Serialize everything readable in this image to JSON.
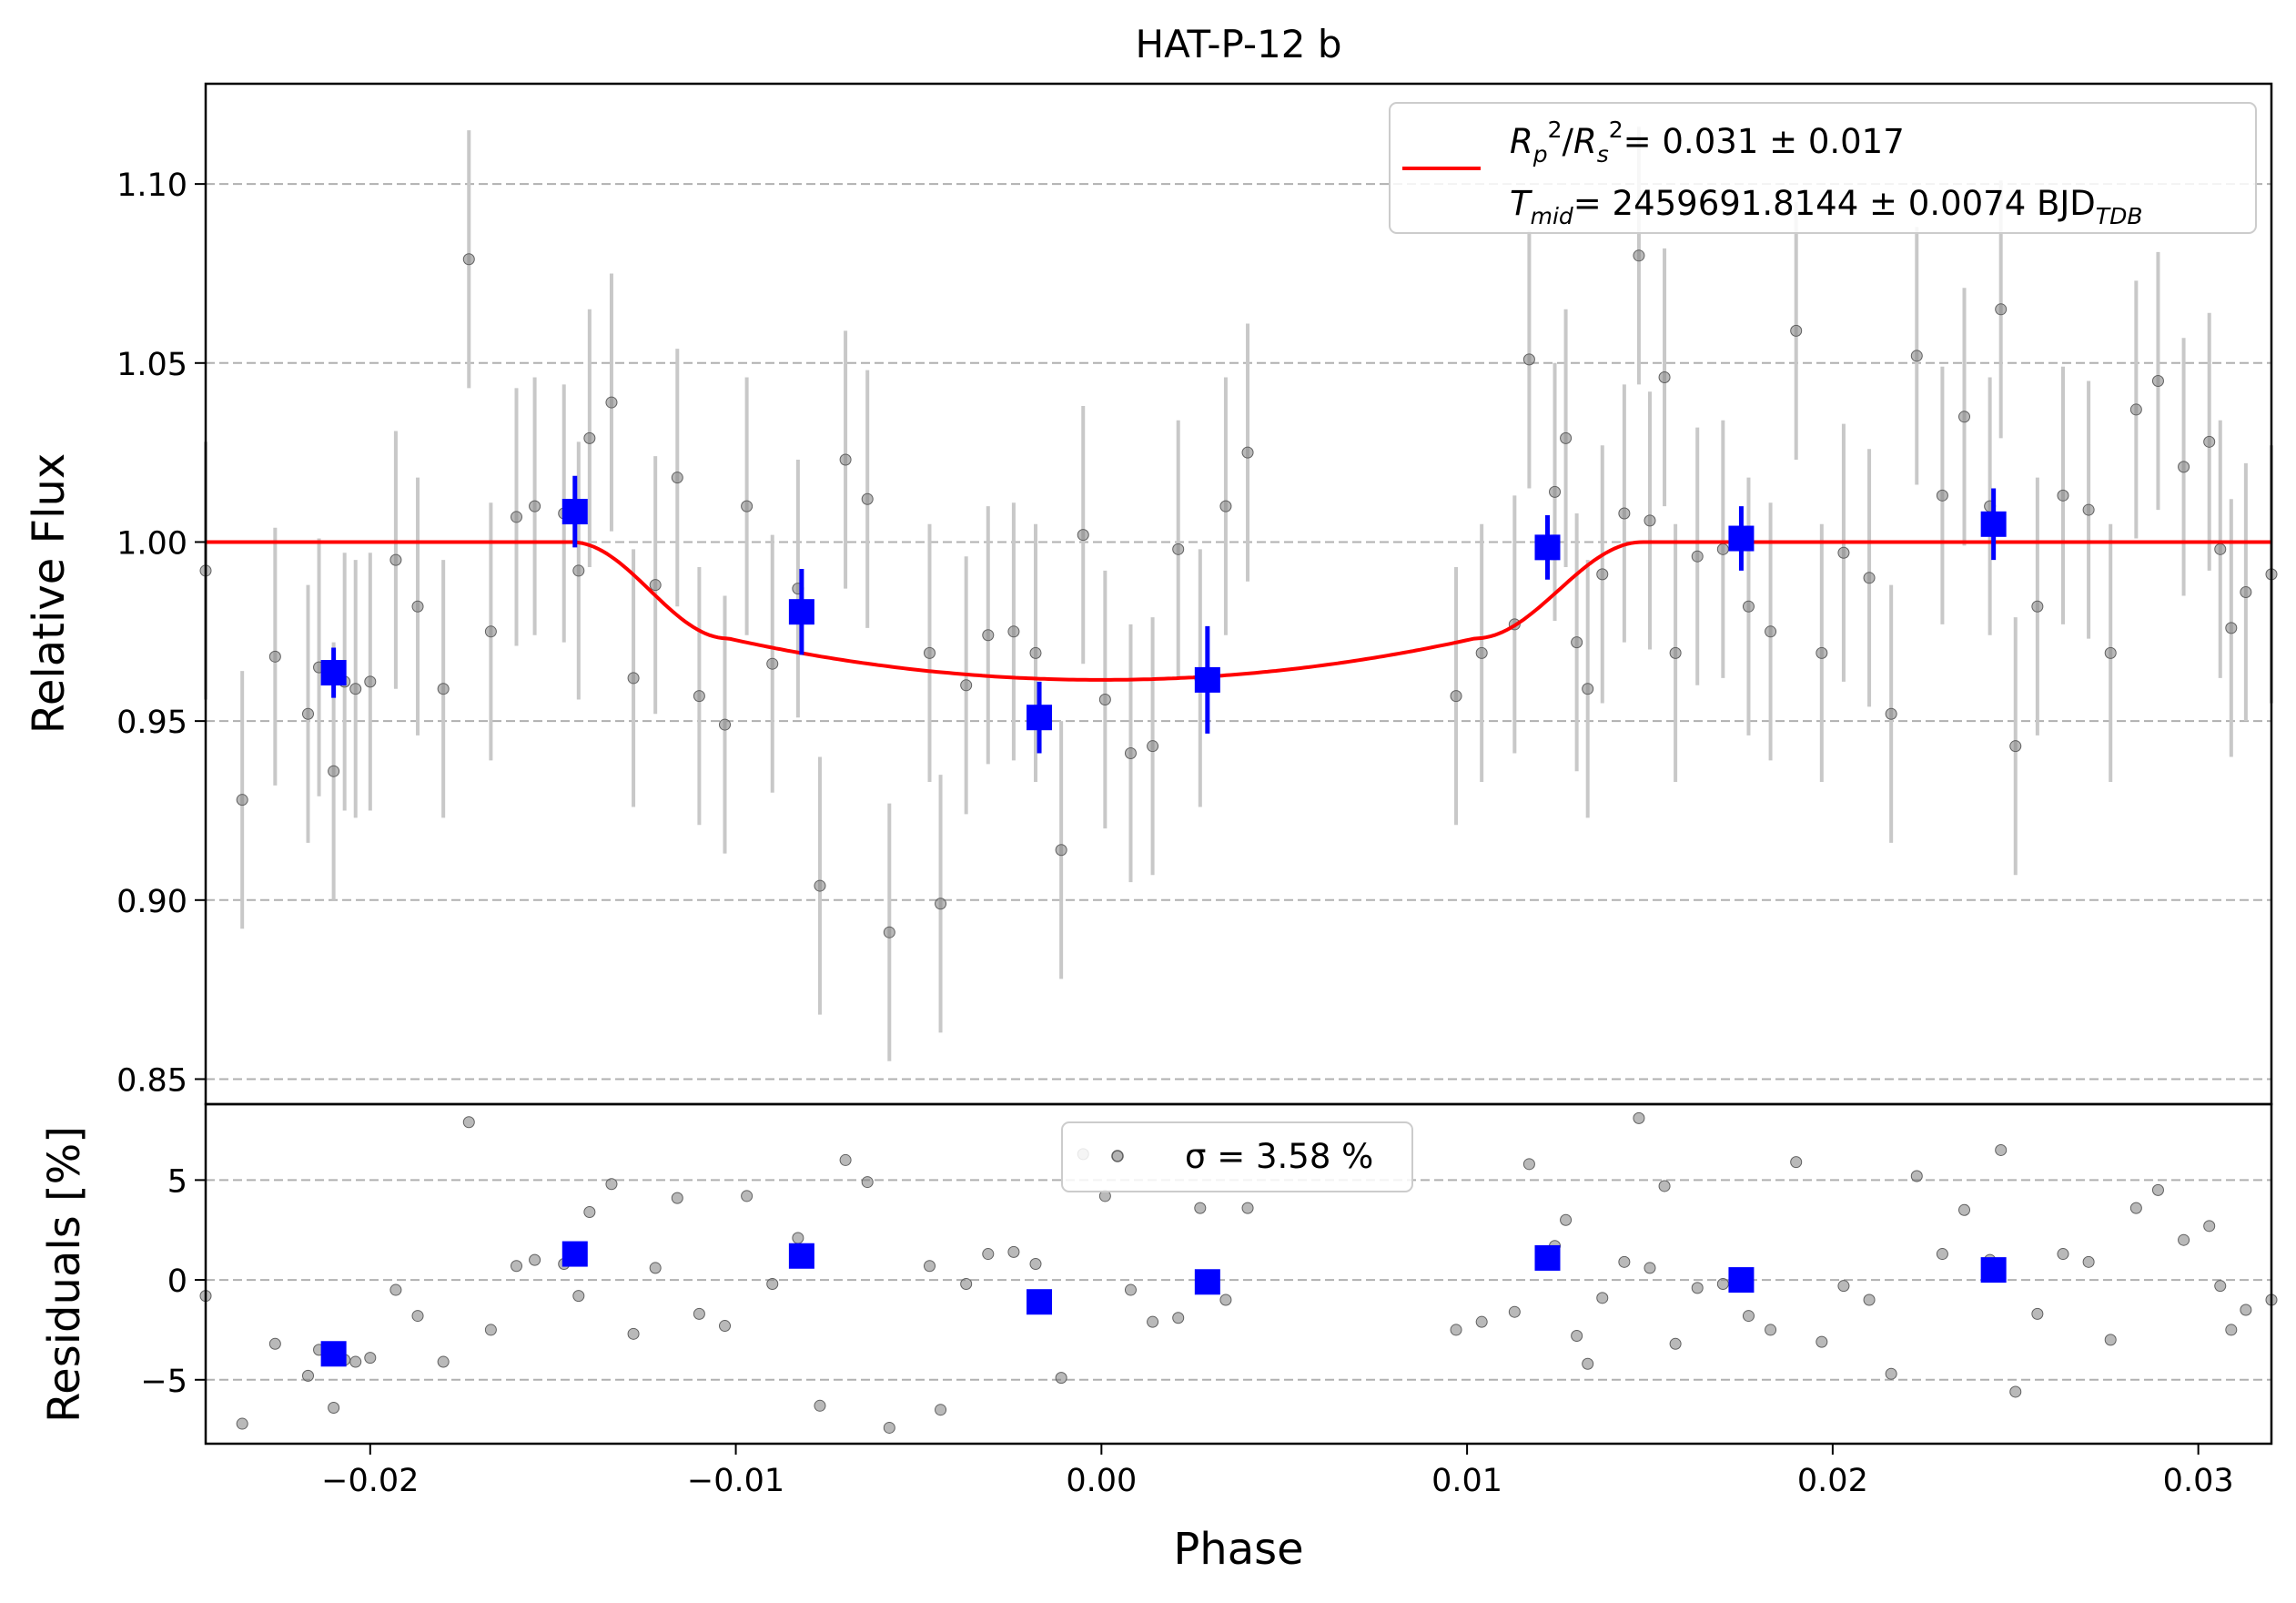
{
  "chart_data": [
    {
      "type": "scatter",
      "panel": "transit",
      "title": "HAT-P-12 b",
      "xlabel": "",
      "ylabel": "Relative Flux",
      "xlim": [
        -0.0245,
        0.032
      ],
      "ylim": [
        0.843,
        1.128
      ],
      "grid": "horizontal dashed",
      "yticks": [
        0.85,
        0.9,
        0.95,
        1.0,
        1.05,
        1.1
      ],
      "ytick_labels": [
        "0.85",
        "0.90",
        "0.95",
        "1.00",
        "1.05",
        "1.10"
      ],
      "legend": {
        "placement": "top-right",
        "entries": [
          {
            "label_html": "R<sub>p</sub><sup>2</sup>/R<sub>s</sub><sup>2</sup> = 0.031 ± 0.017",
            "line1_text": "= 0.031 ± 0.017"
          },
          {
            "label_html": "T<sub>mid</sub> = 2459691.8144 ± 0.0074 BJD<sub>TDB</sub>",
            "line2_text": "= 2459691.8144 ± 0.0074 BJD"
          }
        ]
      },
      "model": {
        "color": "#ff0000",
        "baseline": 1.0,
        "depth": 0.0385,
        "t1": -0.0145,
        "t2": -0.0102,
        "t3": 0.0102,
        "t4": 0.0148
      },
      "raw_points": {
        "color": "#808080",
        "x": [
          -0.0245,
          -0.0235,
          -0.0226,
          -0.0217,
          -0.0214,
          -0.021,
          -0.0207,
          -0.0204,
          -0.02,
          -0.0193,
          -0.0187,
          -0.018,
          -0.0173,
          -0.0167,
          -0.016,
          -0.0155,
          -0.0147,
          -0.0143,
          -0.014,
          -0.0134,
          -0.0128,
          -0.0122,
          -0.0116,
          -0.011,
          -0.0103,
          -0.0097,
          -0.009,
          -0.0083,
          -0.0077,
          -0.007,
          -0.0064,
          -0.0058,
          -0.0047,
          -0.0044,
          -0.0037,
          -0.0031,
          -0.0024,
          -0.0018,
          -0.0011,
          -0.0005,
          0.0001,
          0.0008,
          0.0014,
          0.0021,
          0.0027,
          0.0034,
          0.004,
          0.0097,
          0.0104,
          0.0113,
          0.0117,
          0.0124,
          0.0127,
          0.013,
          0.0133,
          0.0137,
          0.0143,
          0.0147,
          0.015,
          0.0154,
          0.0157,
          0.0163,
          0.017,
          0.0177,
          0.0183,
          0.019,
          0.0197,
          0.0203,
          0.021,
          0.0216,
          0.0223,
          0.023,
          0.0236,
          0.0243,
          0.0246,
          0.025,
          0.0256,
          0.0263,
          0.027,
          0.0276,
          0.0283,
          0.0289,
          0.0296,
          0.0303,
          0.0306,
          0.0309,
          0.0313,
          0.032
        ],
        "y": [
          0.992,
          0.928,
          0.968,
          0.952,
          0.965,
          0.936,
          0.961,
          0.959,
          0.961,
          0.995,
          0.982,
          0.959,
          1.079,
          0.975,
          1.007,
          1.01,
          1.008,
          0.992,
          1.029,
          1.039,
          0.962,
          0.988,
          1.018,
          0.957,
          0.949,
          1.01,
          0.966,
          0.987,
          0.904,
          1.023,
          1.012,
          0.891,
          0.969,
          0.899,
          0.96,
          0.974,
          0.975,
          0.969,
          0.914,
          1.002,
          0.956,
          0.941,
          0.943,
          0.998,
          0.962,
          1.01,
          1.025,
          0.957,
          0.969,
          0.977,
          1.051,
          1.014,
          1.029,
          0.972,
          0.959,
          0.991,
          1.008,
          1.08,
          1.006,
          1.046,
          0.969,
          0.996,
          0.998,
          0.982,
          0.975,
          1.059,
          0.969,
          0.997,
          0.99,
          0.952,
          1.052,
          1.013,
          1.035,
          1.01,
          1.065,
          0.943,
          0.982,
          1.013,
          1.009,
          0.969,
          1.037,
          1.045,
          1.021,
          1.028,
          0.998,
          0.976,
          0.986,
          0.991
        ],
        "error": 0.036
      },
      "binned_points": {
        "color": "#0000ff",
        "x": [
          -0.021,
          -0.0144,
          -0.0082,
          -0.0017,
          0.0029,
          0.0122,
          0.0175,
          0.0244
        ],
        "y": [
          0.9635,
          1.0085,
          0.9805,
          0.951,
          0.9615,
          0.9985,
          1.001,
          1.005
        ],
        "error": [
          0.007,
          0.01,
          0.012,
          0.01,
          0.015,
          0.009,
          0.009,
          0.01
        ]
      }
    },
    {
      "type": "scatter",
      "panel": "residuals",
      "xlabel": "Phase",
      "ylabel": "Residuals [%]",
      "xlim": [
        -0.0245,
        0.032
      ],
      "ylim": [
        -8.2,
        8.8
      ],
      "grid": "horizontal dashed",
      "xticks": [
        -0.02,
        -0.01,
        0.0,
        0.01,
        0.02,
        0.03
      ],
      "xtick_labels": [
        "−0.02",
        "−0.01",
        "0.00",
        "0.01",
        "0.02",
        "0.03"
      ],
      "yticks": [
        -5,
        0,
        5
      ],
      "ytick_labels": [
        "−5",
        "0",
        "5"
      ],
      "legend": {
        "placement": "top-center",
        "label": "σ = 3.58 %"
      },
      "raw_points": {
        "color": "#808080",
        "x": [
          -0.0245,
          -0.0235,
          -0.0226,
          -0.0217,
          -0.0214,
          -0.021,
          -0.0207,
          -0.0204,
          -0.02,
          -0.0193,
          -0.0187,
          -0.018,
          -0.0173,
          -0.0167,
          -0.016,
          -0.0155,
          -0.0147,
          -0.0143,
          -0.014,
          -0.0134,
          -0.0128,
          -0.0122,
          -0.0116,
          -0.011,
          -0.0103,
          -0.0097,
          -0.009,
          -0.0083,
          -0.0077,
          -0.007,
          -0.0064,
          -0.0058,
          -0.0047,
          -0.0044,
          -0.0037,
          -0.0031,
          -0.0024,
          -0.0018,
          -0.0011,
          -0.0005,
          0.0001,
          0.0008,
          0.0014,
          0.0021,
          0.0027,
          0.0034,
          0.004,
          0.0097,
          0.0104,
          0.0113,
          0.0117,
          0.0124,
          0.0127,
          0.013,
          0.0133,
          0.0137,
          0.0143,
          0.0147,
          0.015,
          0.0154,
          0.0157,
          0.0163,
          0.017,
          0.0177,
          0.0183,
          0.019,
          0.0197,
          0.0203,
          0.021,
          0.0216,
          0.0223,
          0.023,
          0.0236,
          0.0243,
          0.0246,
          0.025,
          0.0256,
          0.0263,
          0.027,
          0.0276,
          0.0283,
          0.0289,
          0.0296,
          0.0303,
          0.0306,
          0.0309,
          0.0313,
          0.032
        ],
        "y": [
          -0.8,
          -7.2,
          -3.2,
          -4.8,
          -3.5,
          -6.4,
          -4.0,
          -4.1,
          -3.9,
          -0.5,
          -1.8,
          -4.1,
          7.9,
          -2.5,
          0.7,
          1.0,
          0.8,
          -0.8,
          3.4,
          4.8,
          -2.7,
          0.6,
          4.1,
          -1.7,
          -2.3,
          4.2,
          -0.2,
          2.1,
          -6.3,
          6.0,
          4.9,
          -7.4,
          0.7,
          -6.5,
          -0.2,
          1.3,
          1.4,
          0.8,
          -4.9,
          6.3,
          4.2,
          -0.5,
          -2.1,
          -1.9,
          3.6,
          -1.0,
          3.6,
          -2.5,
          -2.1,
          -1.6,
          5.8,
          1.7,
          3.0,
          -2.8,
          -4.2,
          -0.9,
          0.9,
          8.1,
          0.6,
          4.7,
          -3.2,
          -0.4,
          -0.2,
          -1.8,
          -2.5,
          5.9,
          -3.1,
          -0.3,
          -1.0,
          -4.7,
          5.2,
          1.3,
          3.5,
          1.0,
          6.5,
          -5.6,
          -1.7,
          1.3,
          0.9,
          -3.0,
          3.6,
          4.5,
          2.0,
          2.7,
          -0.3,
          -2.5,
          -1.5,
          -1.0
        ],
        "note_x_shared": true
      },
      "binned_points": {
        "color": "#0000ff",
        "x": [
          -0.021,
          -0.0144,
          -0.0082,
          -0.0017,
          0.0029,
          0.0122,
          0.0175,
          0.0244
        ],
        "y": [
          -3.7,
          1.3,
          1.2,
          -1.1,
          -0.1,
          1.1,
          0.0,
          0.5
        ]
      }
    }
  ]
}
